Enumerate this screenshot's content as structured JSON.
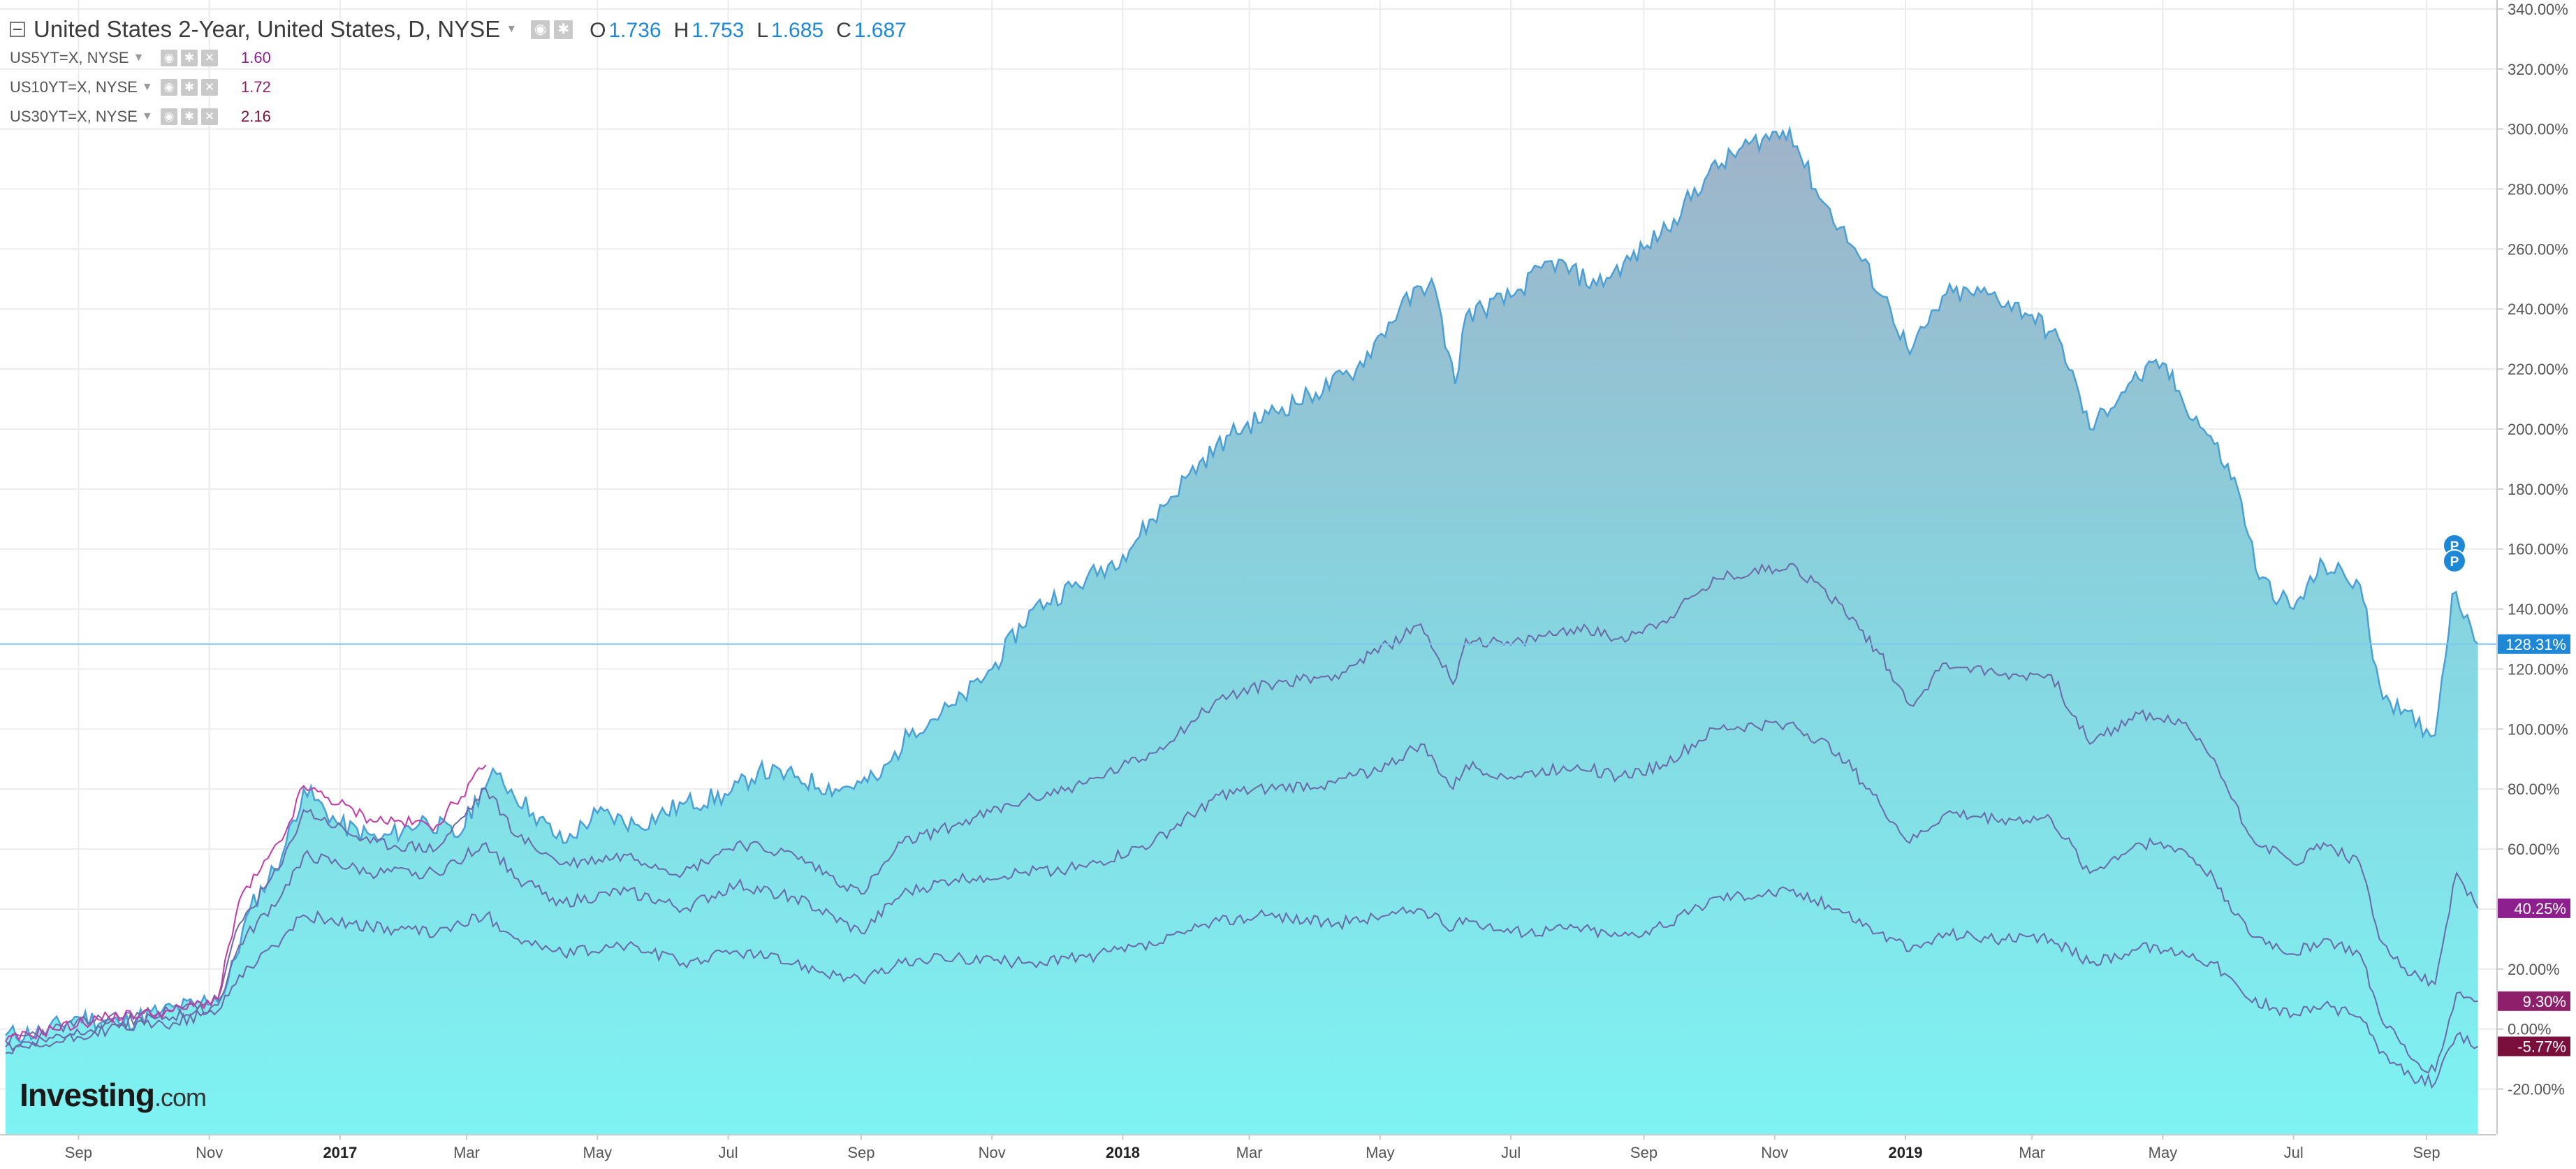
{
  "legend": {
    "main": {
      "title": "United States 2-Year, United States, D, NYSE",
      "ohlc": [
        {
          "key": "O",
          "value": "1.736"
        },
        {
          "key": "H",
          "value": "1.753"
        },
        {
          "key": "L",
          "value": "1.685"
        },
        {
          "key": "C",
          "value": "1.687"
        }
      ]
    },
    "series": [
      {
        "name": "US5YT=X, NYSE",
        "value": "1.60",
        "color": "#8e1f8e"
      },
      {
        "name": "US10YT=X, NYSE",
        "value": "1.72",
        "color": "#8e1f6a"
      },
      {
        "name": "US30YT=X, NYSE",
        "value": "2.16",
        "color": "#7a0f3c"
      }
    ]
  },
  "watermark": {
    "brand": "Investing",
    "suffix": ".com"
  },
  "markers": {
    "p_label": "P"
  },
  "colors": {
    "area_top": "#9fb3c8",
    "area_mid": "#86d5e0",
    "area_bottom": "#7ef3f3",
    "area_line": "#4a9fd6",
    "series_line": "#6a6aa6",
    "pink_line": "#c33ba6",
    "current_line": "#7fc6ef",
    "grid": "#ececec",
    "axis_text": "#555555"
  },
  "chart_data": {
    "type": "area",
    "title": "United States 2-Year, United States, D, NYSE",
    "ylabel": "",
    "xlabel": "",
    "ylim": [
      -35,
      343
    ],
    "y_unit": "%",
    "y_ticks": [
      "-20.00%",
      "0.00%",
      "20.00%",
      "40.00%",
      "60.00%",
      "80.00%",
      "100.00%",
      "120.00%",
      "140.00%",
      "160.00%",
      "180.00%",
      "200.00%",
      "220.00%",
      "240.00%",
      "260.00%",
      "280.00%",
      "300.00%",
      "320.00%",
      "340.00%"
    ],
    "x_range": [
      "2016-07-29",
      "2019-09-29"
    ],
    "x_ticks": [
      {
        "date": "2016-09-01",
        "label": "Sep"
      },
      {
        "date": "2016-11-01",
        "label": "Nov"
      },
      {
        "date": "2017-01-01",
        "label": "2017",
        "bold": true
      },
      {
        "date": "2017-03-01",
        "label": "Mar"
      },
      {
        "date": "2017-05-01",
        "label": "May"
      },
      {
        "date": "2017-07-01",
        "label": "Jul"
      },
      {
        "date": "2017-09-01",
        "label": "Sep"
      },
      {
        "date": "2017-11-01",
        "label": "Nov"
      },
      {
        "date": "2018-01-01",
        "label": "2018",
        "bold": true
      },
      {
        "date": "2018-03-01",
        "label": "Mar"
      },
      {
        "date": "2018-05-01",
        "label": "May"
      },
      {
        "date": "2018-07-01",
        "label": "Jul"
      },
      {
        "date": "2018-09-01",
        "label": "Sep"
      },
      {
        "date": "2018-11-01",
        "label": "Nov"
      },
      {
        "date": "2019-01-01",
        "label": "2019",
        "bold": true
      },
      {
        "date": "2019-03-01",
        "label": "Mar"
      },
      {
        "date": "2019-05-01",
        "label": "May"
      },
      {
        "date": "2019-07-01",
        "label": "Jul"
      },
      {
        "date": "2019-09-01",
        "label": "Sep"
      }
    ],
    "grid": true,
    "current_line_value": 128.31,
    "series": [
      {
        "name": "United States 2-Year, United States, D, NYSE",
        "kind": "area",
        "end_label": "128.31%",
        "points": [
          [
            "2016-07-29",
            -2
          ],
          [
            "2016-08-15",
            -1
          ],
          [
            "2016-09-01",
            4
          ],
          [
            "2016-09-20",
            2
          ],
          [
            "2016-10-10",
            6
          ],
          [
            "2016-10-25",
            8
          ],
          [
            "2016-11-08",
            12
          ],
          [
            "2016-11-20",
            40
          ],
          [
            "2016-12-05",
            58
          ],
          [
            "2016-12-15",
            80
          ],
          [
            "2017-01-01",
            68
          ],
          [
            "2017-01-20",
            63
          ],
          [
            "2017-02-10",
            70
          ],
          [
            "2017-02-25",
            64
          ],
          [
            "2017-03-08",
            80
          ],
          [
            "2017-03-15",
            85
          ],
          [
            "2017-04-01",
            72
          ],
          [
            "2017-04-15",
            62
          ],
          [
            "2017-05-01",
            72
          ],
          [
            "2017-05-20",
            68
          ],
          [
            "2017-06-10",
            75
          ],
          [
            "2017-07-01",
            78
          ],
          [
            "2017-07-15",
            86
          ],
          [
            "2017-08-01",
            84
          ],
          [
            "2017-08-20",
            80
          ],
          [
            "2017-09-01",
            82
          ],
          [
            "2017-09-10",
            84
          ],
          [
            "2017-09-25",
            100
          ],
          [
            "2017-10-15",
            108
          ],
          [
            "2017-11-01",
            120
          ],
          [
            "2017-11-20",
            140
          ],
          [
            "2017-12-15",
            150
          ],
          [
            "2018-01-01",
            158
          ],
          [
            "2018-01-15",
            170
          ],
          [
            "2018-02-01",
            185
          ],
          [
            "2018-02-20",
            198
          ],
          [
            "2018-03-10",
            205
          ],
          [
            "2018-04-01",
            212
          ],
          [
            "2018-04-20",
            220
          ],
          [
            "2018-05-10",
            240
          ],
          [
            "2018-05-25",
            250
          ],
          [
            "2018-06-05",
            215
          ],
          [
            "2018-06-10",
            238
          ],
          [
            "2018-07-01",
            244
          ],
          [
            "2018-07-20",
            256
          ],
          [
            "2018-08-10",
            248
          ],
          [
            "2018-09-01",
            260
          ],
          [
            "2018-09-15",
            270
          ],
          [
            "2018-10-01",
            285
          ],
          [
            "2018-10-20",
            295
          ],
          [
            "2018-11-08",
            300
          ],
          [
            "2018-11-20",
            280
          ],
          [
            "2018-12-10",
            258
          ],
          [
            "2018-12-25",
            240
          ],
          [
            "2019-01-03",
            225
          ],
          [
            "2019-01-20",
            245
          ],
          [
            "2019-02-10",
            245
          ],
          [
            "2019-03-01",
            238
          ],
          [
            "2019-03-15",
            228
          ],
          [
            "2019-03-28",
            200
          ],
          [
            "2019-04-15",
            215
          ],
          [
            "2019-05-01",
            222
          ],
          [
            "2019-05-10",
            210
          ],
          [
            "2019-05-25",
            195
          ],
          [
            "2019-06-05",
            180
          ],
          [
            "2019-06-15",
            150
          ],
          [
            "2019-07-01",
            140
          ],
          [
            "2019-07-15",
            155
          ],
          [
            "2019-08-01",
            148
          ],
          [
            "2019-08-10",
            115
          ],
          [
            "2019-08-20",
            105
          ],
          [
            "2019-09-01",
            100
          ],
          [
            "2019-09-05",
            98
          ],
          [
            "2019-09-13",
            145
          ],
          [
            "2019-09-20",
            138
          ],
          [
            "2019-09-25",
            128.31
          ]
        ]
      },
      {
        "name": "US5YT=X, NYSE",
        "kind": "line",
        "end_label": "40.25%",
        "points": [
          [
            "2016-07-29",
            -4
          ],
          [
            "2016-08-20",
            0
          ],
          [
            "2016-09-15",
            4
          ],
          [
            "2016-10-15",
            6
          ],
          [
            "2016-11-05",
            10
          ],
          [
            "2016-11-15",
            35
          ],
          [
            "2016-12-05",
            55
          ],
          [
            "2016-12-15",
            73
          ],
          [
            "2017-01-15",
            62
          ],
          [
            "2017-02-15",
            60
          ],
          [
            "2017-03-10",
            80
          ],
          [
            "2017-03-25",
            64
          ],
          [
            "2017-04-15",
            55
          ],
          [
            "2017-05-15",
            58
          ],
          [
            "2017-06-10",
            52
          ],
          [
            "2017-07-05",
            62
          ],
          [
            "2017-08-01",
            58
          ],
          [
            "2017-09-01",
            45
          ],
          [
            "2017-09-20",
            62
          ],
          [
            "2017-10-15",
            68
          ],
          [
            "2017-11-15",
            76
          ],
          [
            "2017-12-15",
            82
          ],
          [
            "2018-01-15",
            92
          ],
          [
            "2018-02-15",
            110
          ],
          [
            "2018-03-10",
            115
          ],
          [
            "2018-04-10",
            118
          ],
          [
            "2018-05-05",
            128
          ],
          [
            "2018-05-20",
            135
          ],
          [
            "2018-06-04",
            115
          ],
          [
            "2018-06-10",
            130
          ],
          [
            "2018-07-01",
            128
          ],
          [
            "2018-08-01",
            134
          ],
          [
            "2018-08-20",
            130
          ],
          [
            "2018-09-10",
            136
          ],
          [
            "2018-10-05",
            150
          ],
          [
            "2018-11-08",
            155
          ],
          [
            "2018-12-01",
            142
          ],
          [
            "2018-12-20",
            125
          ],
          [
            "2019-01-03",
            108
          ],
          [
            "2019-01-20",
            122
          ],
          [
            "2019-02-15",
            118
          ],
          [
            "2019-03-10",
            118
          ],
          [
            "2019-03-28",
            95
          ],
          [
            "2019-04-20",
            105
          ],
          [
            "2019-05-10",
            102
          ],
          [
            "2019-05-25",
            90
          ],
          [
            "2019-06-10",
            65
          ],
          [
            "2019-07-01",
            55
          ],
          [
            "2019-07-15",
            62
          ],
          [
            "2019-08-01",
            55
          ],
          [
            "2019-08-10",
            30
          ],
          [
            "2019-08-25",
            18
          ],
          [
            "2019-09-05",
            15
          ],
          [
            "2019-09-15",
            52
          ],
          [
            "2019-09-25",
            40.25
          ]
        ]
      },
      {
        "name": "US10YT=X, NYSE",
        "kind": "line",
        "end_label": "9.30%",
        "points": [
          [
            "2016-07-29",
            -6
          ],
          [
            "2016-08-20",
            -3
          ],
          [
            "2016-09-15",
            2
          ],
          [
            "2016-10-15",
            4
          ],
          [
            "2016-11-05",
            8
          ],
          [
            "2016-11-15",
            28
          ],
          [
            "2016-12-05",
            45
          ],
          [
            "2016-12-15",
            58
          ],
          [
            "2017-01-15",
            52
          ],
          [
            "2017-02-15",
            52
          ],
          [
            "2017-03-10",
            62
          ],
          [
            "2017-03-25",
            50
          ],
          [
            "2017-04-15",
            42
          ],
          [
            "2017-05-15",
            46
          ],
          [
            "2017-06-10",
            40
          ],
          [
            "2017-07-05",
            48
          ],
          [
            "2017-08-01",
            44
          ],
          [
            "2017-09-01",
            32
          ],
          [
            "2017-09-20",
            45
          ],
          [
            "2017-10-15",
            50
          ],
          [
            "2017-11-15",
            52
          ],
          [
            "2017-12-15",
            54
          ],
          [
            "2018-01-15",
            62
          ],
          [
            "2018-02-15",
            78
          ],
          [
            "2018-03-10",
            80
          ],
          [
            "2018-04-10",
            82
          ],
          [
            "2018-05-05",
            88
          ],
          [
            "2018-05-20",
            95
          ],
          [
            "2018-06-04",
            80
          ],
          [
            "2018-06-10",
            88
          ],
          [
            "2018-07-01",
            84
          ],
          [
            "2018-08-01",
            88
          ],
          [
            "2018-08-20",
            84
          ],
          [
            "2018-09-10",
            88
          ],
          [
            "2018-10-05",
            100
          ],
          [
            "2018-11-08",
            102
          ],
          [
            "2018-12-01",
            92
          ],
          [
            "2018-12-20",
            75
          ],
          [
            "2019-01-03",
            62
          ],
          [
            "2019-01-20",
            72
          ],
          [
            "2019-02-15",
            70
          ],
          [
            "2019-03-10",
            70
          ],
          [
            "2019-03-28",
            52
          ],
          [
            "2019-04-20",
            62
          ],
          [
            "2019-05-10",
            60
          ],
          [
            "2019-05-25",
            50
          ],
          [
            "2019-06-10",
            32
          ],
          [
            "2019-07-01",
            25
          ],
          [
            "2019-07-15",
            30
          ],
          [
            "2019-08-01",
            25
          ],
          [
            "2019-08-10",
            5
          ],
          [
            "2019-08-25",
            -10
          ],
          [
            "2019-09-05",
            -14
          ],
          [
            "2019-09-15",
            12
          ],
          [
            "2019-09-25",
            9.3
          ]
        ]
      },
      {
        "name": "US30YT=X, NYSE",
        "kind": "line",
        "end_label": "-5.77%",
        "points": [
          [
            "2016-07-29",
            -8
          ],
          [
            "2016-08-20",
            -5
          ],
          [
            "2016-09-15",
            0
          ],
          [
            "2016-10-15",
            2
          ],
          [
            "2016-11-05",
            6
          ],
          [
            "2016-11-15",
            18
          ],
          [
            "2016-12-05",
            30
          ],
          [
            "2016-12-15",
            38
          ],
          [
            "2017-01-15",
            34
          ],
          [
            "2017-02-15",
            32
          ],
          [
            "2017-03-10",
            38
          ],
          [
            "2017-03-25",
            30
          ],
          [
            "2017-04-15",
            25
          ],
          [
            "2017-05-15",
            28
          ],
          [
            "2017-06-10",
            22
          ],
          [
            "2017-07-05",
            26
          ],
          [
            "2017-08-01",
            22
          ],
          [
            "2017-09-01",
            16
          ],
          [
            "2017-09-20",
            22
          ],
          [
            "2017-10-15",
            24
          ],
          [
            "2017-11-15",
            22
          ],
          [
            "2017-12-15",
            24
          ],
          [
            "2018-01-15",
            28
          ],
          [
            "2018-02-15",
            36
          ],
          [
            "2018-03-10",
            38
          ],
          [
            "2018-04-10",
            35
          ],
          [
            "2018-05-05",
            38
          ],
          [
            "2018-05-20",
            40
          ],
          [
            "2018-06-04",
            33
          ],
          [
            "2018-06-10",
            37
          ],
          [
            "2018-07-01",
            32
          ],
          [
            "2018-08-01",
            34
          ],
          [
            "2018-08-20",
            31
          ],
          [
            "2018-09-10",
            34
          ],
          [
            "2018-10-05",
            44
          ],
          [
            "2018-11-08",
            46
          ],
          [
            "2018-12-01",
            40
          ],
          [
            "2018-12-20",
            32
          ],
          [
            "2019-01-03",
            26
          ],
          [
            "2019-01-20",
            32
          ],
          [
            "2019-02-15",
            30
          ],
          [
            "2019-03-10",
            30
          ],
          [
            "2019-03-28",
            22
          ],
          [
            "2019-04-20",
            27
          ],
          [
            "2019-05-10",
            26
          ],
          [
            "2019-05-25",
            22
          ],
          [
            "2019-06-10",
            10
          ],
          [
            "2019-07-01",
            5
          ],
          [
            "2019-07-15",
            8
          ],
          [
            "2019-08-01",
            4
          ],
          [
            "2019-08-10",
            -8
          ],
          [
            "2019-08-25",
            -16
          ],
          [
            "2019-09-05",
            -18
          ],
          [
            "2019-09-15",
            -2
          ],
          [
            "2019-09-25",
            -5.77
          ]
        ]
      }
    ]
  }
}
